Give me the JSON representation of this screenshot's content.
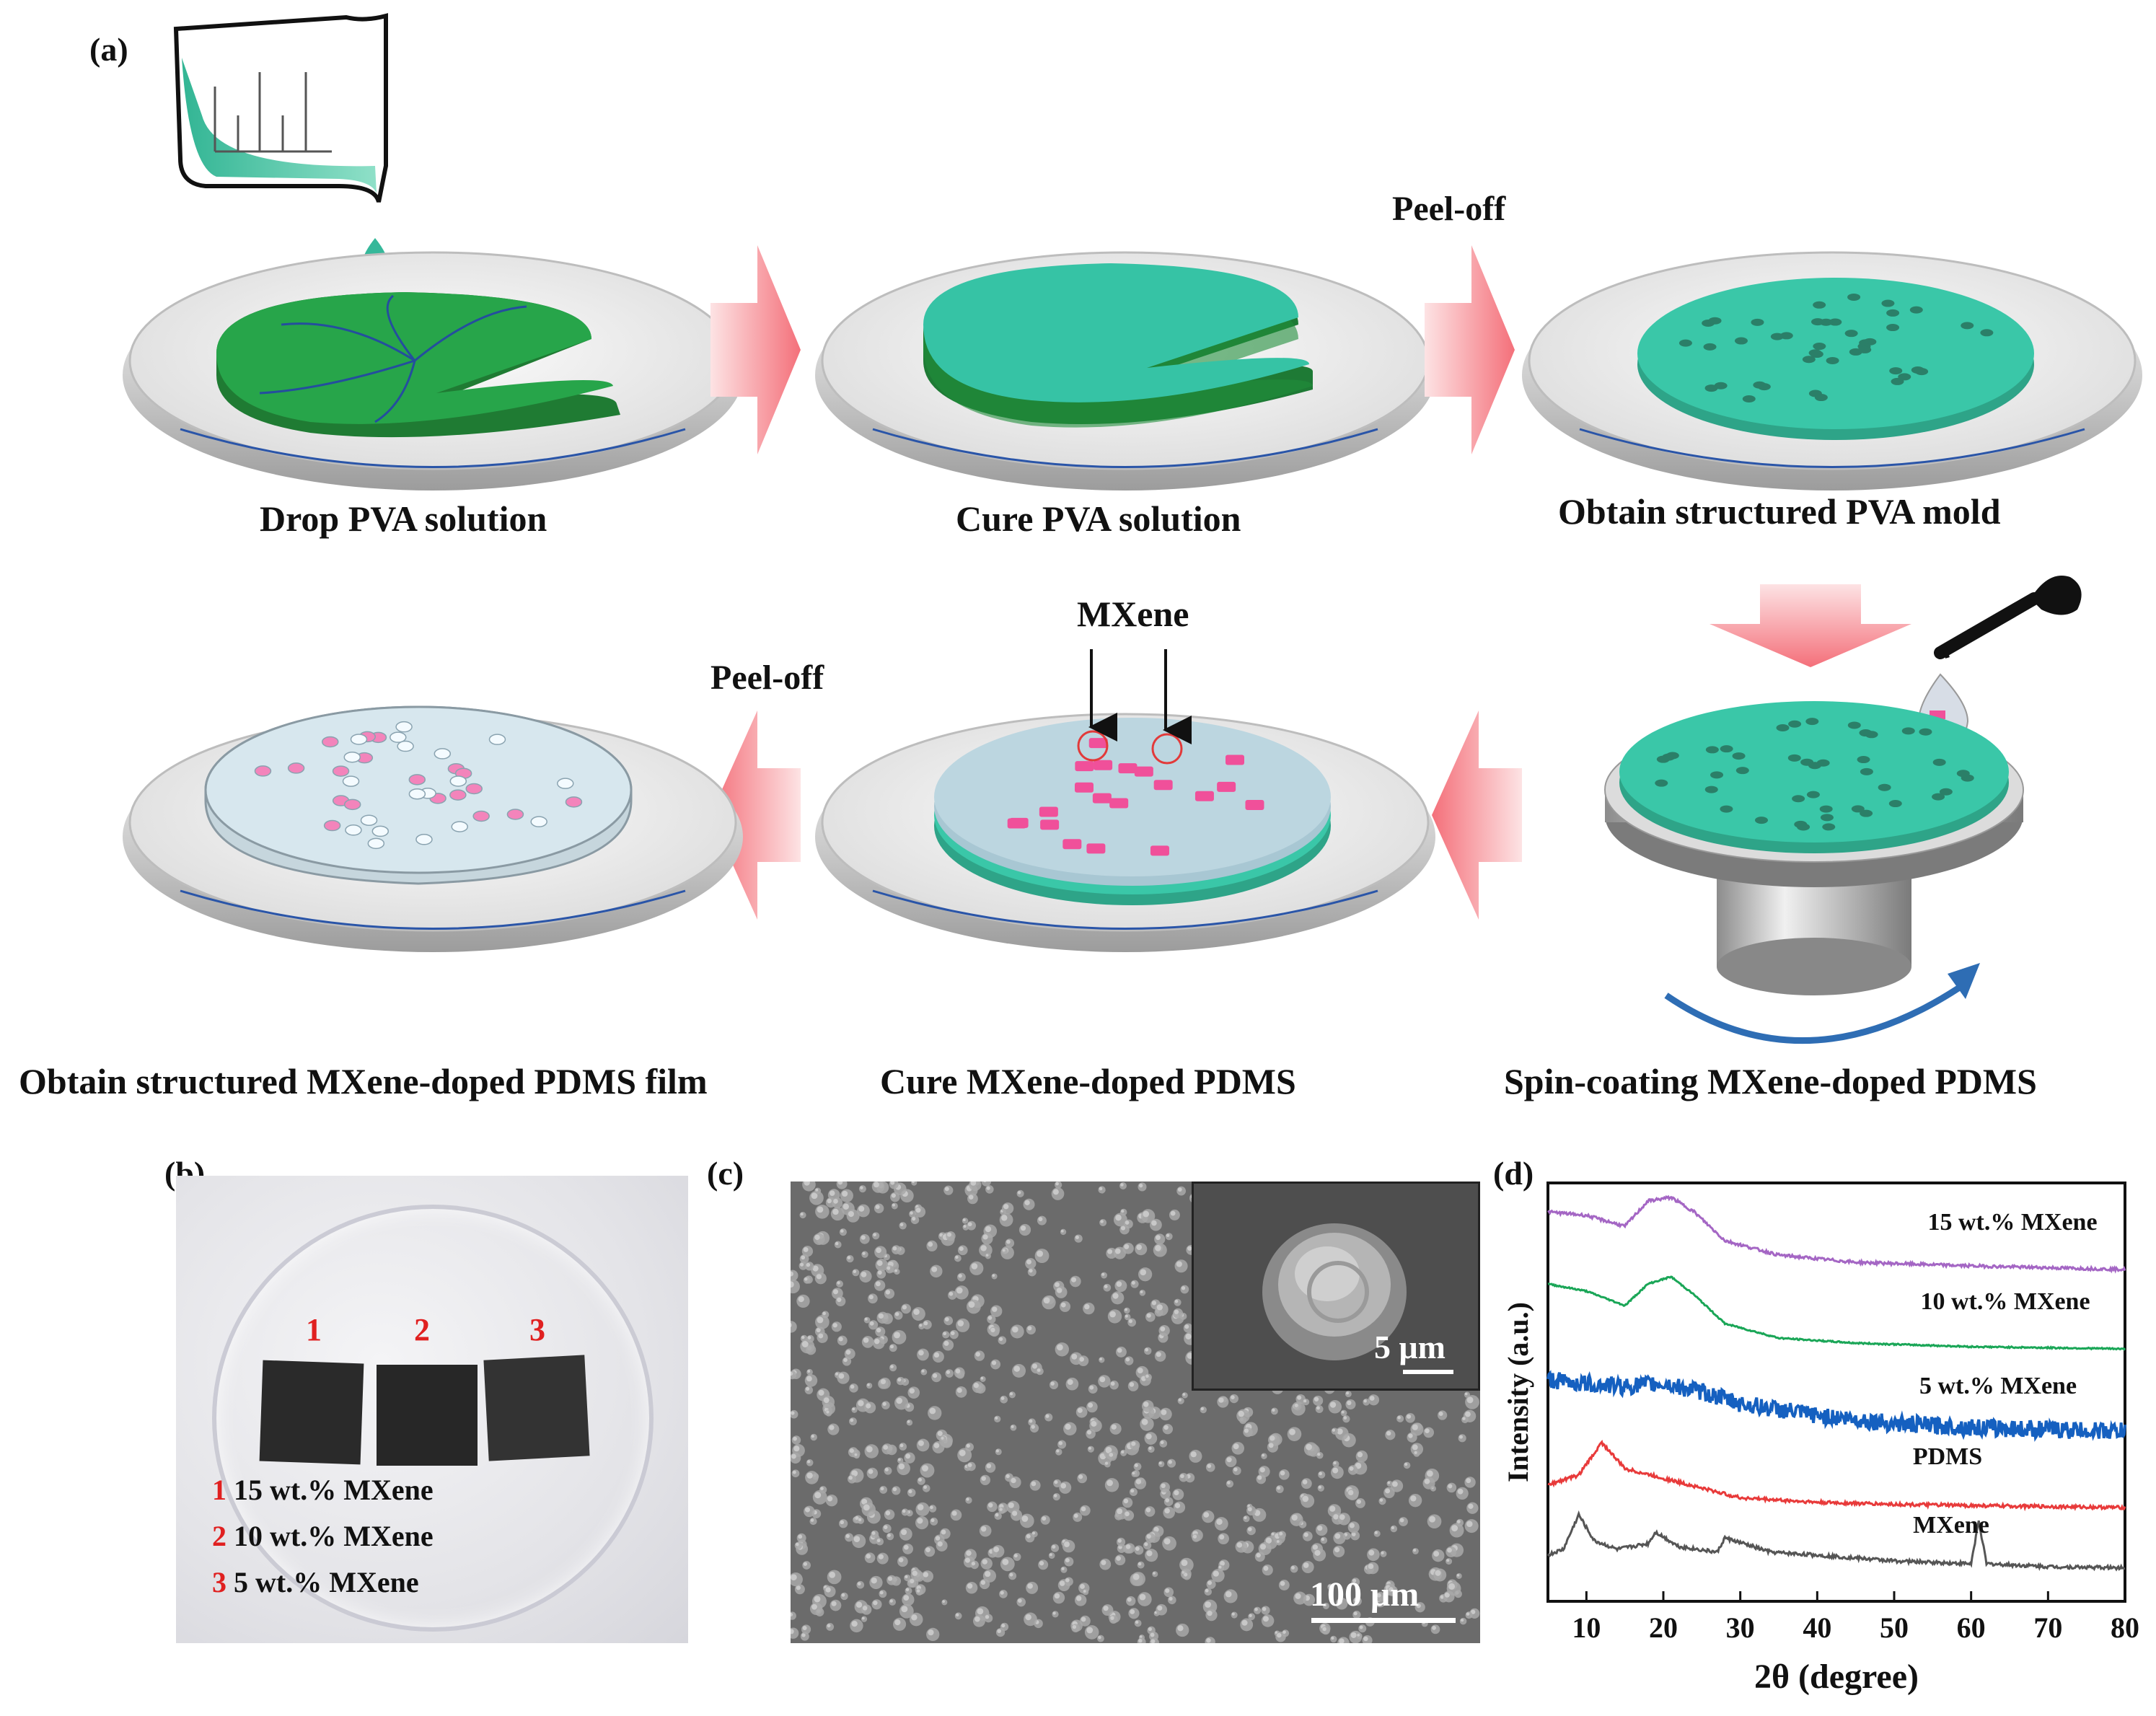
{
  "panels": {
    "a": {
      "tag": "(a)",
      "steps": [
        {
          "label": "Drop PVA solution"
        },
        {
          "label": "Cure PVA solution"
        },
        {
          "label": "Obtain structured PVA mold"
        },
        {
          "label": "Spin-coating MXene-doped PDMS"
        },
        {
          "label": "Cure MXene-doped PDMS"
        },
        {
          "label": "Obtain structured MXene-doped PDMS film"
        }
      ],
      "peel_top": "Peel-off",
      "peel_bottom": "Peel-off",
      "mxene_label": "MXene",
      "colors": {
        "dark_green": "#1e8a3c",
        "teal": "#38c4a8",
        "pink": "#f0509a",
        "arrow": "#f47a80",
        "blue_arrow": "#2e6db4"
      }
    },
    "b": {
      "tag": "(b)",
      "sample_numbers": [
        "1",
        "2",
        "3"
      ],
      "legend": [
        {
          "num": "1",
          "text": "15 wt.% MXene"
        },
        {
          "num": "2",
          "text": "10 wt.% MXene"
        },
        {
          "num": "3",
          "text": "5 wt.% MXene"
        }
      ]
    },
    "c": {
      "tag": "(c)",
      "scale_main": "100 μm",
      "scale_inset": "5 μm"
    },
    "d": {
      "tag": "(d)"
    }
  },
  "chart_data": {
    "type": "line",
    "xlabel": "2θ (degree)",
    "ylabel": "Intensity (a.u.)",
    "xlim": [
      5,
      80
    ],
    "xticks": [
      10,
      20,
      30,
      40,
      50,
      60,
      70,
      80
    ],
    "y_ticks_shown": false,
    "series": [
      {
        "name": "15 wt.% MXene",
        "color": "#a466c4",
        "x": [
          5,
          10,
          15,
          18,
          21,
          24,
          28,
          35,
          45,
          60,
          80
        ],
        "y": [
          0.8,
          0.75,
          0.6,
          0.95,
          1.0,
          0.8,
          0.4,
          0.2,
          0.1,
          0.05,
          0.0
        ],
        "noise": 0.04
      },
      {
        "name": "10 wt.% MXene",
        "color": "#1aa657",
        "x": [
          5,
          10,
          15,
          18,
          21,
          24,
          28,
          35,
          45,
          60,
          80
        ],
        "y": [
          0.9,
          0.8,
          0.6,
          0.9,
          1.0,
          0.75,
          0.35,
          0.15,
          0.08,
          0.03,
          0.0
        ],
        "noise": 0.02
      },
      {
        "name": "5 wt.% MXene",
        "color": "#1560c0",
        "x": [
          5,
          10,
          15,
          20,
          25,
          30,
          40,
          50,
          60,
          80
        ],
        "y": [
          0.7,
          0.65,
          0.62,
          0.65,
          0.55,
          0.4,
          0.25,
          0.15,
          0.1,
          0.05
        ],
        "noise": 0.22
      },
      {
        "name": "PDMS",
        "color": "#e83a3a",
        "x": [
          5,
          9,
          12,
          15,
          20,
          25,
          30,
          40,
          50,
          60,
          80
        ],
        "y": [
          0.35,
          0.5,
          1.0,
          0.6,
          0.45,
          0.3,
          0.15,
          0.08,
          0.05,
          0.03,
          0.0
        ],
        "noise": 0.05
      },
      {
        "name": "MXene",
        "color": "#555555",
        "x": [
          5,
          7,
          9,
          11,
          14,
          18,
          19,
          22,
          27,
          28,
          34,
          40,
          50,
          60,
          61,
          62,
          70,
          80
        ],
        "y": [
          0.3,
          0.4,
          1.0,
          0.55,
          0.4,
          0.5,
          0.7,
          0.45,
          0.35,
          0.6,
          0.35,
          0.3,
          0.2,
          0.15,
          0.9,
          0.15,
          0.1,
          0.08
        ],
        "noise": 0.06
      }
    ]
  }
}
